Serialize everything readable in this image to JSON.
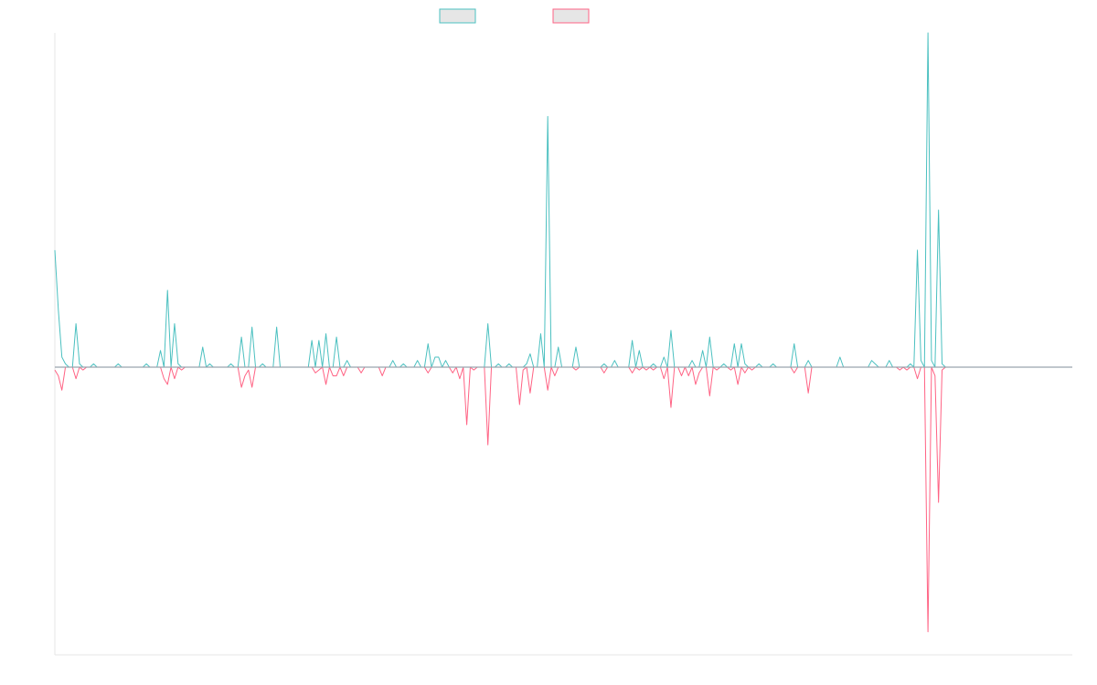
{
  "chart_data": {
    "type": "line",
    "title": "",
    "xlabel": "",
    "ylabel": "",
    "legend_position": "top-center",
    "grid": false,
    "x_count": 290,
    "ylim": [
      -1.0,
      1.0
    ],
    "series": [
      {
        "color": "#4bc0c0",
        "fill": "#e6e6e6",
        "direction": "positive",
        "spikes": [
          [
            0,
            0.35
          ],
          [
            1,
            0.17
          ],
          [
            2,
            0.03
          ],
          [
            3,
            0.01
          ],
          [
            6,
            0.13
          ],
          [
            7,
            0.01
          ],
          [
            11,
            0.01
          ],
          [
            18,
            0.01
          ],
          [
            26,
            0.01
          ],
          [
            30,
            0.05
          ],
          [
            32,
            0.23
          ],
          [
            34,
            0.13
          ],
          [
            35,
            0.01
          ],
          [
            42,
            0.06
          ],
          [
            44,
            0.01
          ],
          [
            50,
            0.01
          ],
          [
            53,
            0.09
          ],
          [
            56,
            0.12
          ],
          [
            59,
            0.01
          ],
          [
            63,
            0.12
          ],
          [
            73,
            0.08
          ],
          [
            75,
            0.08
          ],
          [
            77,
            0.1
          ],
          [
            80,
            0.09
          ],
          [
            83,
            0.02
          ],
          [
            96,
            0.02
          ],
          [
            99,
            0.01
          ],
          [
            103,
            0.02
          ],
          [
            106,
            0.07
          ],
          [
            108,
            0.03
          ],
          [
            109,
            0.03
          ],
          [
            111,
            0.02
          ],
          [
            123,
            0.13
          ],
          [
            126,
            0.01
          ],
          [
            129,
            0.01
          ],
          [
            134,
            0.01
          ],
          [
            135,
            0.04
          ],
          [
            138,
            0.1
          ],
          [
            140,
            0.75
          ],
          [
            143,
            0.06
          ],
          [
            148,
            0.06
          ],
          [
            156,
            0.01
          ],
          [
            159,
            0.02
          ],
          [
            164,
            0.08
          ],
          [
            166,
            0.05
          ],
          [
            170,
            0.01
          ],
          [
            173,
            0.03
          ],
          [
            175,
            0.11
          ],
          [
            181,
            0.02
          ],
          [
            184,
            0.05
          ],
          [
            186,
            0.09
          ],
          [
            190,
            0.01
          ],
          [
            193,
            0.07
          ],
          [
            195,
            0.07
          ],
          [
            196,
            0.01
          ],
          [
            200,
            0.01
          ],
          [
            204,
            0.01
          ],
          [
            210,
            0.07
          ],
          [
            214,
            0.02
          ],
          [
            223,
            0.03
          ],
          [
            232,
            0.02
          ],
          [
            233,
            0.01
          ],
          [
            237,
            0.02
          ],
          [
            243,
            0.01
          ],
          [
            245,
            0.35
          ],
          [
            246,
            0.02
          ],
          [
            248,
            1.0
          ],
          [
            249,
            0.02
          ],
          [
            251,
            0.47
          ],
          [
            252,
            0.01
          ]
        ]
      },
      {
        "color": "#ff6384",
        "fill": "#e6e6e6",
        "direction": "negative",
        "spikes": [
          [
            0,
            0.01
          ],
          [
            1,
            0.03
          ],
          [
            2,
            0.08
          ],
          [
            6,
            0.04
          ],
          [
            8,
            0.01
          ],
          [
            31,
            0.04
          ],
          [
            32,
            0.06
          ],
          [
            34,
            0.04
          ],
          [
            36,
            0.01
          ],
          [
            53,
            0.07
          ],
          [
            54,
            0.03
          ],
          [
            55,
            0.01
          ],
          [
            56,
            0.07
          ],
          [
            74,
            0.02
          ],
          [
            75,
            0.01
          ],
          [
            77,
            0.06
          ],
          [
            79,
            0.03
          ],
          [
            80,
            0.03
          ],
          [
            82,
            0.03
          ],
          [
            87,
            0.02
          ],
          [
            93,
            0.03
          ],
          [
            106,
            0.02
          ],
          [
            113,
            0.02
          ],
          [
            115,
            0.04
          ],
          [
            117,
            0.2
          ],
          [
            119,
            0.01
          ],
          [
            123,
            0.27
          ],
          [
            132,
            0.13
          ],
          [
            133,
            0.01
          ],
          [
            135,
            0.09
          ],
          [
            140,
            0.08
          ],
          [
            142,
            0.03
          ],
          [
            148,
            0.01
          ],
          [
            156,
            0.02
          ],
          [
            164,
            0.02
          ],
          [
            166,
            0.01
          ],
          [
            168,
            0.01
          ],
          [
            170,
            0.01
          ],
          [
            173,
            0.04
          ],
          [
            175,
            0.14
          ],
          [
            178,
            0.03
          ],
          [
            180,
            0.03
          ],
          [
            182,
            0.06
          ],
          [
            183,
            0.02
          ],
          [
            186,
            0.1
          ],
          [
            188,
            0.01
          ],
          [
            192,
            0.01
          ],
          [
            194,
            0.06
          ],
          [
            196,
            0.02
          ],
          [
            198,
            0.01
          ],
          [
            210,
            0.02
          ],
          [
            214,
            0.09
          ],
          [
            240,
            0.01
          ],
          [
            242,
            0.01
          ],
          [
            245,
            0.04
          ],
          [
            248,
            0.92
          ],
          [
            250,
            0.03
          ],
          [
            251,
            0.47
          ],
          [
            252,
            0.01
          ]
        ]
      }
    ]
  }
}
